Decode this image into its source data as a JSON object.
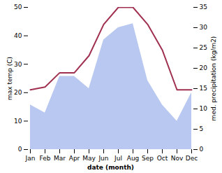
{
  "chart_data": {
    "type": "line",
    "xlabel": "date (month)",
    "ylabel": "max temp (C)",
    "y2label": "med. precipitation (kg/m2)",
    "categories": [
      "Jan",
      "Feb",
      "Mar",
      "Apr",
      "May",
      "Jun",
      "Jul",
      "Aug",
      "Sep",
      "Oct",
      "Nov",
      "Dec"
    ],
    "series": [
      {
        "type": "area",
        "axis": "y2",
        "color": "#b8c8f0",
        "values": [
          11,
          9,
          18,
          18,
          15,
          27,
          30,
          31,
          17,
          11,
          7,
          14
        ]
      },
      {
        "type": "line",
        "axis": "y",
        "color": "#a03050",
        "values": [
          21,
          22,
          27,
          27,
          33,
          44,
          50,
          50,
          44,
          35,
          21,
          21
        ]
      }
    ],
    "ylim": [
      0,
      50
    ],
    "yticks": [
      0,
      10,
      20,
      30,
      40,
      50
    ],
    "y2lim": [
      0,
      35
    ],
    "y2ticks": [
      0,
      5,
      10,
      15,
      20,
      25,
      30,
      35
    ]
  }
}
